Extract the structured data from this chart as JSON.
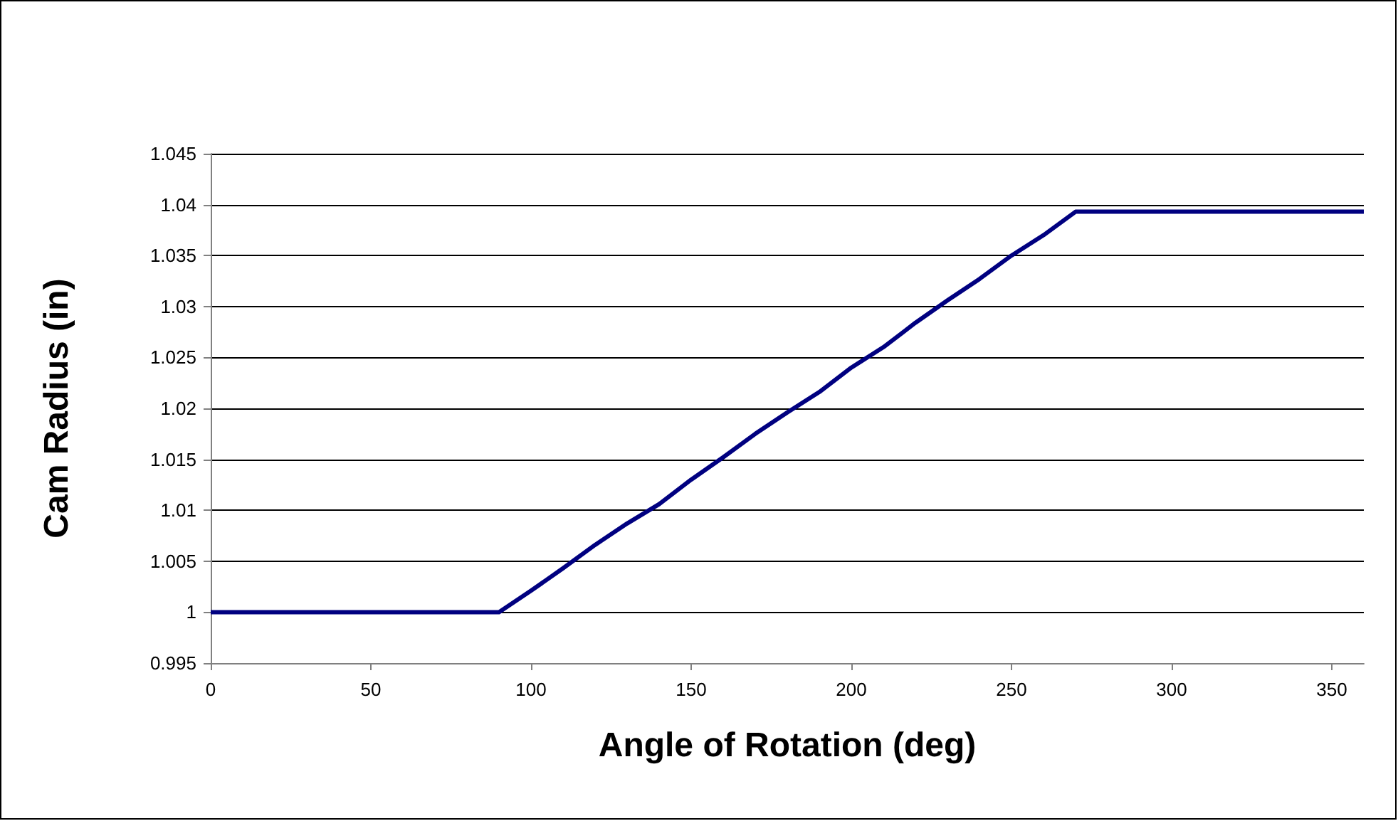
{
  "chart_data": {
    "type": "line",
    "xlabel": "Angle of Rotation (deg)",
    "ylabel": "Cam Radius (in)",
    "series": [
      {
        "color": "#000080",
        "x": [
          0,
          10,
          20,
          30,
          40,
          50,
          60,
          70,
          80,
          90,
          100,
          110,
          120,
          130,
          140,
          150,
          160,
          170,
          180,
          190,
          200,
          210,
          220,
          230,
          240,
          250,
          260,
          270,
          280,
          290,
          300,
          310,
          320,
          330,
          340,
          350,
          360
        ],
        "values": [
          1,
          1,
          1,
          1,
          1,
          1,
          1,
          1,
          1,
          1,
          1.0021,
          1.0043,
          1.0066,
          1.0087,
          1.0106,
          1.013,
          1.0152,
          1.0175,
          1.0196,
          1.0216,
          1.024,
          1.026,
          1.0284,
          1.0306,
          1.0327,
          1.035,
          1.037,
          1.0393,
          1.0393,
          1.0393,
          1.0393,
          1.0393,
          1.0393,
          1.0393,
          1.0393,
          1.0393,
          1.0393
        ]
      }
    ],
    "xlim": [
      0,
      360
    ],
    "xticks": [
      0,
      50,
      100,
      150,
      200,
      250,
      300,
      350
    ],
    "ylim": [
      0.995,
      1.045
    ],
    "yticks": [
      0.995,
      1,
      1.005,
      1.01,
      1.015,
      1.02,
      1.025,
      1.03,
      1.035,
      1.04,
      1.045
    ],
    "grid": "y",
    "marker": "none",
    "line_style": "solid"
  }
}
